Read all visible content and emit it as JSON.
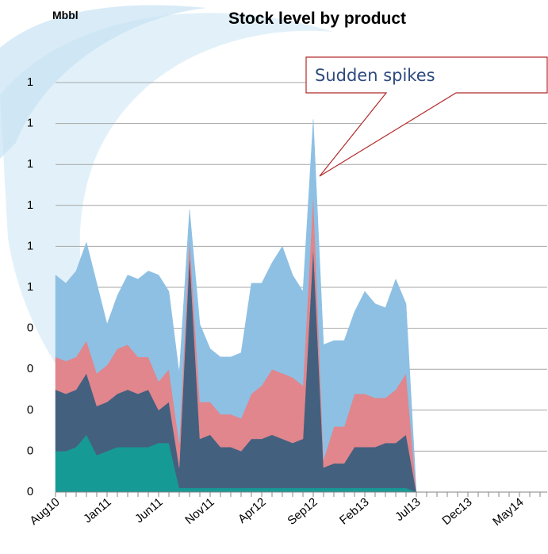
{
  "chart_data": {
    "type": "stacked_area",
    "title": "Stock level by product",
    "unit_label": "Mbbl",
    "annotation": "Sudden spikes",
    "categories": [
      "Aug10",
      null,
      null,
      null,
      null,
      "Jan11",
      null,
      null,
      null,
      null,
      "Jun11",
      null,
      null,
      null,
      null,
      "Nov11",
      null,
      null,
      null,
      null,
      "Apr12",
      null,
      null,
      null,
      null,
      "Sep12",
      null,
      null,
      null,
      null,
      "Feb13",
      null,
      null,
      null,
      null,
      "Jul13",
      null,
      null,
      null,
      null,
      "Dec13",
      null,
      null,
      null,
      null,
      "May14",
      null,
      null
    ],
    "series": [
      {
        "color": "#169a95",
        "values": [
          0.1,
          0.1,
          0.11,
          0.14,
          0.09,
          0.1,
          0.11,
          0.11,
          0.11,
          0.11,
          0.12,
          0.12,
          0.01,
          0.01,
          0.01,
          0.01,
          0.01,
          0.01,
          0.01,
          0.01,
          0.01,
          0.01,
          0.01,
          0.01,
          0.01,
          0.01,
          0.01,
          0.01,
          0.01,
          0.01,
          0.01,
          0.01,
          0.01,
          0.01,
          0.01,
          0,
          null,
          null,
          null,
          null,
          null,
          null,
          null,
          null,
          null,
          null,
          null,
          null
        ]
      },
      {
        "color": "#44607f",
        "values": [
          0.15,
          0.14,
          0.14,
          0.15,
          0.12,
          0.12,
          0.13,
          0.14,
          0.13,
          0.14,
          0.08,
          0.1,
          0.05,
          0.57,
          0.12,
          0.13,
          0.1,
          0.1,
          0.09,
          0.12,
          0.12,
          0.13,
          0.12,
          0.11,
          0.12,
          0.59,
          0.05,
          0.06,
          0.06,
          0.1,
          0.1,
          0.1,
          0.11,
          0.11,
          0.13,
          0,
          null,
          null,
          null,
          null,
          null,
          null,
          null,
          null,
          null,
          null,
          null,
          null
        ]
      },
      {
        "color": "#e0868c",
        "values": [
          0.08,
          0.08,
          0.08,
          0.08,
          0.08,
          0.09,
          0.11,
          0.11,
          0.09,
          0.08,
          0.07,
          0.08,
          0.06,
          0.04,
          0.09,
          0.08,
          0.08,
          0.08,
          0.08,
          0.11,
          0.13,
          0.16,
          0.16,
          0.16,
          0.13,
          0.13,
          0.02,
          0.09,
          0.09,
          0.13,
          0.13,
          0.12,
          0.11,
          0.13,
          0.15,
          0,
          null,
          null,
          null,
          null,
          null,
          null,
          null,
          null,
          null,
          null,
          null,
          null
        ]
      },
      {
        "color": "#8ec0e4",
        "values": [
          0.2,
          0.19,
          0.21,
          0.24,
          0.22,
          0.1,
          0.13,
          0.17,
          0.19,
          0.21,
          0.26,
          0.19,
          0.17,
          0.07,
          0.19,
          0.13,
          0.14,
          0.14,
          0.16,
          0.27,
          0.25,
          0.26,
          0.31,
          0.25,
          0.23,
          0.18,
          0.28,
          0.21,
          0.21,
          0.2,
          0.25,
          0.23,
          0.22,
          0.27,
          0.17,
          0,
          null,
          null,
          null,
          null,
          null,
          null,
          null,
          null,
          null,
          null,
          null,
          null
        ]
      }
    ],
    "ylim": [
      0,
      1
    ],
    "yticks": [
      0,
      {
        "value": 0.1,
        "label": "0"
      },
      {
        "value": 0.2,
        "label": "0"
      },
      {
        "value": 0.3,
        "label": "0"
      },
      {
        "value": 0.4,
        "label": "0"
      },
      {
        "value": 0.5,
        "label": "1"
      },
      {
        "value": 0.6,
        "label": "1"
      },
      {
        "value": 0.7,
        "label": "1"
      },
      {
        "value": 0.8,
        "label": "1"
      },
      {
        "value": 0.9,
        "label": "1"
      },
      1
    ],
    "grid": true
  }
}
